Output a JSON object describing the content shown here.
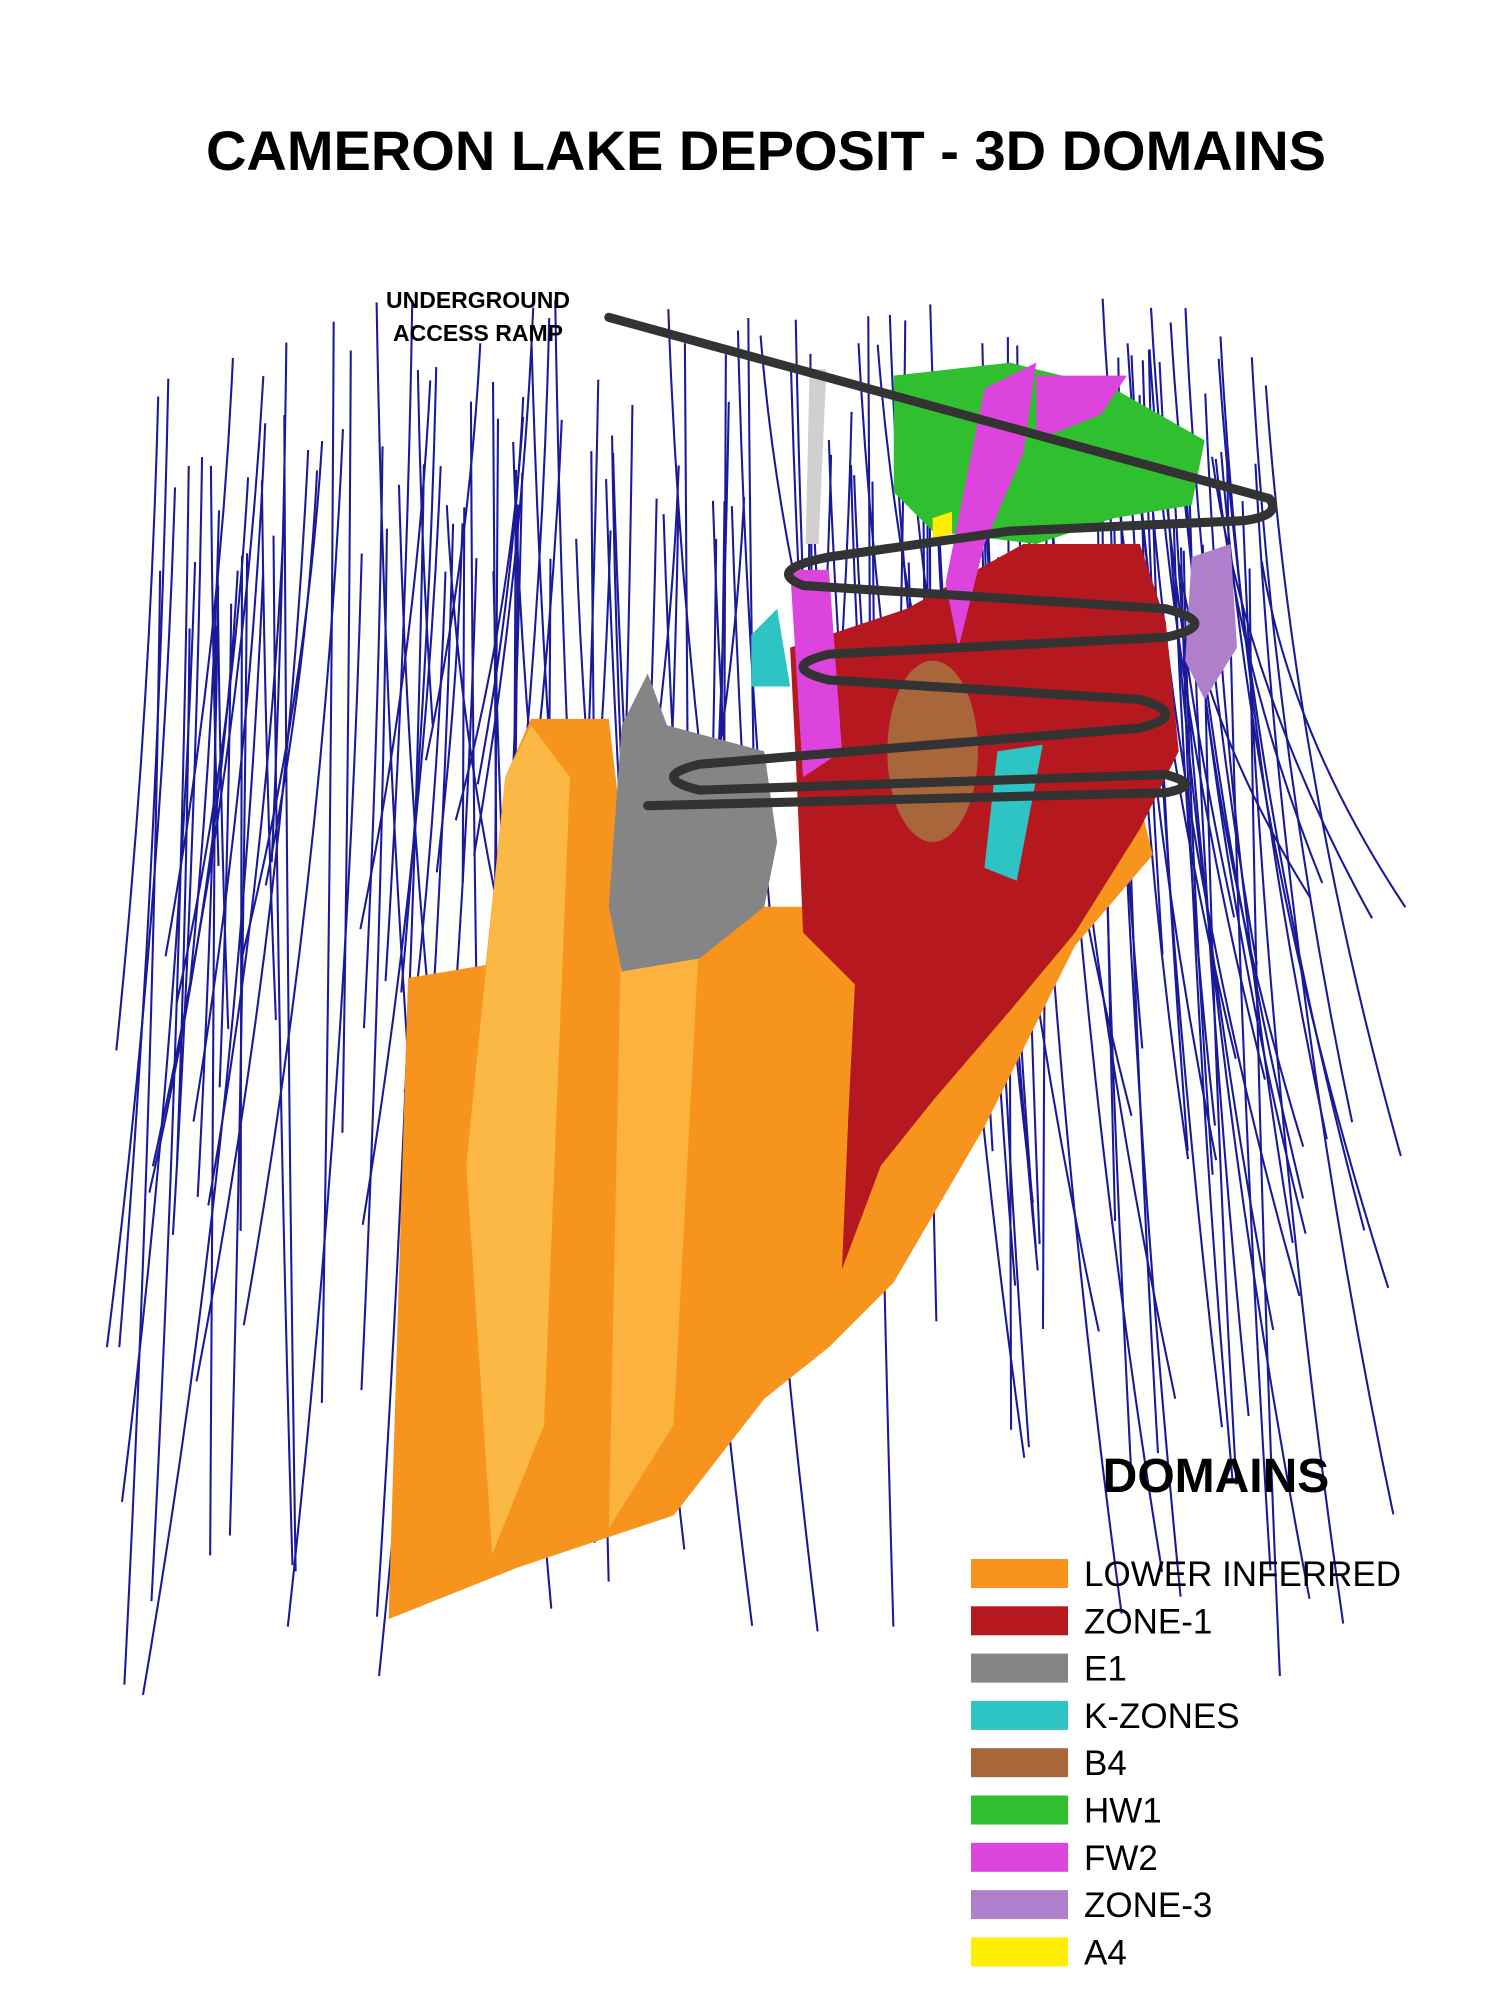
{
  "header": {
    "title": "CAMERON LAKE DEPOSIT - 3D DOMAINS"
  },
  "annotation": {
    "lines": [
      "UNDERGROUND",
      "ACCESS RAMP"
    ]
  },
  "legend": {
    "title": "DOMAINS",
    "items": [
      {
        "label": "LOWER INFERRED",
        "color": "#f7941d"
      },
      {
        "label": "ZONE-1",
        "color": "#b5191f"
      },
      {
        "label": "E1",
        "color": "#858585"
      },
      {
        "label": "K-ZONES",
        "color": "#2ec4c4"
      },
      {
        "label": "B4",
        "color": "#a8663a"
      },
      {
        "label": "HW1",
        "color": "#2fbf2f"
      },
      {
        "label": "FW2",
        "color": "#dd44dd"
      },
      {
        "label": "ZONE-3",
        "color": "#b07fcc"
      },
      {
        "label": "A4",
        "color": "#ffee00"
      }
    ]
  }
}
